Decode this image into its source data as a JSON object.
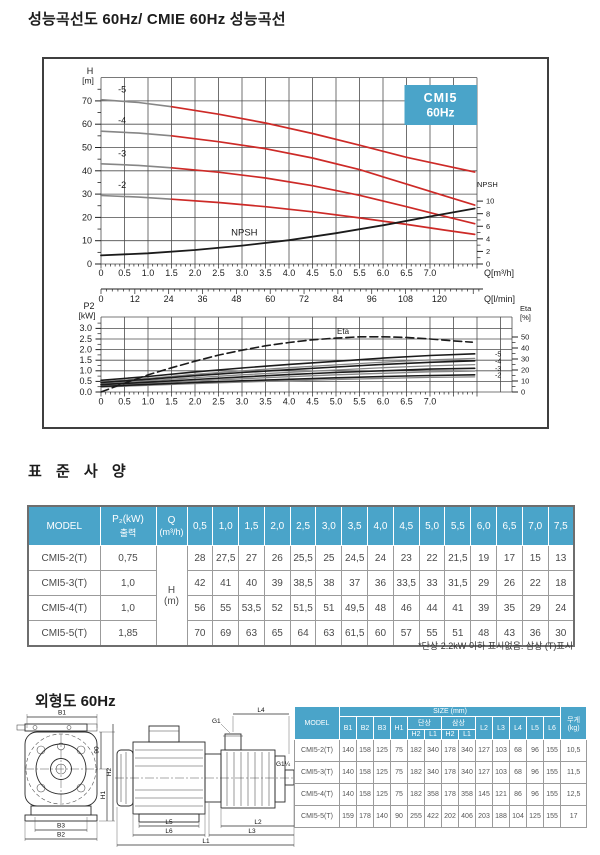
{
  "page": {
    "title": "성능곡선도 60Hz/ CMIE 60Hz 성능곡선",
    "spec_heading": "표 준 사 양",
    "spec_footnote": "*단상 2.2kW 이하 표시없음. 삼상 (T)표시",
    "outline_heading": "외형도 60Hz"
  },
  "colors": {
    "accent_blue": "#4aa4c9",
    "curve_red": "#cd2a27",
    "curve_gray": "#868686",
    "ink": "#1b1b1b",
    "grid": "#4d4d4d"
  },
  "chart_data": {
    "type": "line",
    "badge": {
      "line1": "CMI5",
      "line2": "60Hz"
    },
    "top_chart": {
      "title_axis_y": [
        "H",
        "[m]"
      ],
      "y_ticks": [
        0,
        10,
        20,
        30,
        40,
        50,
        60,
        70
      ],
      "x_ticks": [
        "0",
        "0.5",
        "1.0",
        "1.5",
        "2.0",
        "2.5",
        "3.0",
        "3.5",
        "4.0",
        "4.5",
        "5.0",
        "5.5",
        "6.0",
        "6.5",
        "7.0"
      ],
      "x_unit": "Q[m³/h]",
      "npsh_axis": {
        "title": "NPSH",
        "ticks": [
          10,
          8,
          6,
          4,
          2,
          0
        ]
      },
      "inplot_label": "NPSH",
      "curve_labels": [
        "-5",
        "-4",
        "-3",
        "-2"
      ],
      "curves": [
        {
          "name": "-5",
          "gray": [
            [
              0,
              70.5
            ],
            [
              0.8,
              69.3
            ],
            [
              1.5,
              67.5
            ]
          ],
          "red": [
            [
              1.5,
              67.5
            ],
            [
              2.5,
              64.3
            ],
            [
              3.5,
              60.5
            ],
            [
              4.5,
              56
            ],
            [
              5.5,
              51
            ],
            [
              6.5,
              45.8
            ],
            [
              7.3,
              42.3
            ],
            [
              7.95,
              39.5
            ]
          ]
        },
        {
          "name": "-4",
          "gray": [
            [
              0,
              57
            ],
            [
              0.8,
              56.2
            ],
            [
              1.5,
              55
            ]
          ],
          "red": [
            [
              1.5,
              55
            ],
            [
              2.5,
              52.5
            ],
            [
              3.5,
              49.5
            ],
            [
              4.5,
              45.5
            ],
            [
              5.5,
              40.5
            ],
            [
              6.5,
              34.3
            ],
            [
              7.3,
              29.3
            ],
            [
              7.95,
              25.3
            ]
          ]
        },
        {
          "name": "-3",
          "gray": [
            [
              0,
              43
            ],
            [
              0.8,
              42.3
            ],
            [
              1.5,
              41.3
            ]
          ],
          "red": [
            [
              1.5,
              41.3
            ],
            [
              2.5,
              39.4
            ],
            [
              3.5,
              36.9
            ],
            [
              4.5,
              33.6
            ],
            [
              5.5,
              29.5
            ],
            [
              6.5,
              24.6
            ],
            [
              7.3,
              20.5
            ],
            [
              7.95,
              17.3
            ]
          ]
        },
        {
          "name": "-2",
          "gray": [
            [
              0,
              29.4
            ],
            [
              0.8,
              28.7
            ],
            [
              1.5,
              27.8
            ]
          ],
          "red": [
            [
              1.5,
              27.8
            ],
            [
              2.5,
              26.4
            ],
            [
              3.5,
              24.6
            ],
            [
              4.5,
              22.4
            ],
            [
              5.5,
              19.8
            ],
            [
              6.5,
              17
            ],
            [
              7.3,
              14.6
            ],
            [
              7.95,
              12.7
            ]
          ]
        }
      ],
      "npsh_curve": [
        [
          0,
          3.7
        ],
        [
          1,
          4.6
        ],
        [
          2,
          6
        ],
        [
          3,
          7.9
        ],
        [
          4,
          10.2
        ],
        [
          5,
          13.2
        ],
        [
          6,
          16.6
        ],
        [
          7,
          20.4
        ],
        [
          7.95,
          23.8
        ]
      ]
    },
    "lmin_axis": {
      "ticks": [
        0,
        12,
        24,
        36,
        48,
        60,
        72,
        84,
        96,
        108,
        120
      ],
      "unit": "Q[l/min]"
    },
    "bottom_chart": {
      "title_axis_y": [
        "P2",
        "[kW]"
      ],
      "y_ticks": [
        "3.0",
        "2.5",
        "2.0",
        "1.5",
        "1.0",
        "0.5",
        "0.0"
      ],
      "x_ticks": [
        "0",
        "0.5",
        "1.0",
        "1.5",
        "2.0",
        "2.5",
        "3.0",
        "3.5",
        "4.0",
        "4.5",
        "5.0",
        "5.5",
        "6.0",
        "6.5",
        "7.0"
      ],
      "eta_axis": {
        "title": [
          "Eta",
          "[%]"
        ],
        "ticks": [
          50,
          40,
          30,
          20,
          10,
          0
        ]
      },
      "eta_label": "Eta",
      "curve_labels": [
        "-5",
        "-4",
        "-3",
        "-2"
      ],
      "power_curves": [
        {
          "name": "-5",
          "pts": [
            [
              0,
              0.55
            ],
            [
              1,
              0.73
            ],
            [
              2,
              0.95
            ],
            [
              3,
              1.13
            ],
            [
              4,
              1.3
            ],
            [
              5,
              1.45
            ],
            [
              6,
              1.6
            ],
            [
              7,
              1.72
            ],
            [
              7.95,
              1.8
            ]
          ]
        },
        {
          "name": "-4",
          "pts": [
            [
              0,
              0.45
            ],
            [
              1,
              0.6
            ],
            [
              2,
              0.77
            ],
            [
              3,
              0.92
            ],
            [
              4,
              1.05
            ],
            [
              5,
              1.18
            ],
            [
              6,
              1.3
            ],
            [
              7,
              1.4
            ],
            [
              7.95,
              1.47
            ]
          ]
        },
        {
          "name": "-3",
          "pts": [
            [
              0,
              0.35
            ],
            [
              1,
              0.46
            ],
            [
              2,
              0.59
            ],
            [
              3,
              0.71
            ],
            [
              4,
              0.82
            ],
            [
              5,
              0.92
            ],
            [
              6,
              1.0
            ],
            [
              7,
              1.08
            ],
            [
              7.95,
              1.12
            ]
          ]
        },
        {
          "name": "-2",
          "pts": [
            [
              0,
              0.26
            ],
            [
              1,
              0.36
            ],
            [
              2,
              0.45
            ],
            [
              3,
              0.53
            ],
            [
              4,
              0.6
            ],
            [
              5,
              0.67
            ],
            [
              6,
              0.73
            ],
            [
              7,
              0.78
            ],
            [
              7.95,
              0.81
            ]
          ]
        }
      ],
      "eta_curve": [
        [
          0,
          0
        ],
        [
          0.5,
          8
        ],
        [
          1,
          15.5
        ],
        [
          1.5,
          22
        ],
        [
          2,
          28
        ],
        [
          2.5,
          33.5
        ],
        [
          3,
          38
        ],
        [
          3.5,
          42
        ],
        [
          4,
          45
        ],
        [
          4.5,
          47.5
        ],
        [
          5,
          49
        ],
        [
          5.5,
          50.2
        ],
        [
          6,
          50.2
        ],
        [
          6.5,
          49.6
        ],
        [
          7,
          48.2
        ],
        [
          7.5,
          46.5
        ],
        [
          7.9,
          45.3
        ]
      ]
    }
  },
  "spec_table": {
    "col_model": "MODEL",
    "col_power": [
      "P₂(kW)",
      "출력"
    ],
    "col_q": [
      "Q",
      "(m³/h)"
    ],
    "flow_ticks": [
      "0,5",
      "1,0",
      "1,5",
      "2,0",
      "2,5",
      "3,0",
      "3,5",
      "4,0",
      "4,5",
      "5,0",
      "5,5",
      "6,0",
      "6,5",
      "7,0",
      "7,5"
    ],
    "unit_cell": [
      "H",
      "(m)"
    ],
    "rows": [
      {
        "model": "CMI5-2(T)",
        "power": "0,75",
        "values": [
          "28",
          "27,5",
          "27",
          "26",
          "25,5",
          "25",
          "24,5",
          "24",
          "23",
          "22",
          "21,5",
          "19",
          "17",
          "15",
          "13"
        ]
      },
      {
        "model": "CMI5-3(T)",
        "power": "1,0",
        "values": [
          "42",
          "41",
          "40",
          "39",
          "38,5",
          "38",
          "37",
          "36",
          "33,5",
          "33",
          "31,5",
          "29",
          "26",
          "22",
          "18"
        ]
      },
      {
        "model": "CMI5-4(T)",
        "power": "1,0",
        "values": [
          "56",
          "55",
          "53,5",
          "52",
          "51,5",
          "51",
          "49,5",
          "48",
          "46",
          "44",
          "41",
          "39",
          "35",
          "29",
          "24"
        ]
      },
      {
        "model": "CMI5-5(T)",
        "power": "1,85",
        "values": [
          "70",
          "69",
          "63",
          "65",
          "64",
          "63",
          "61,5",
          "60",
          "57",
          "55",
          "51",
          "48",
          "43",
          "36",
          "30"
        ]
      }
    ]
  },
  "size_table": {
    "col_model": "MODEL",
    "group_size": "SIZE (mm)",
    "col_weight": [
      "무게",
      "(kg)"
    ],
    "cols_left": [
      "B1",
      "B2",
      "B3",
      "H1"
    ],
    "group_single": "단상",
    "group_three": "삼상",
    "sub_cols": [
      "H2",
      "L1"
    ],
    "cols_right": [
      "L2",
      "L3",
      "L4",
      "L5",
      "L6"
    ],
    "rows": [
      {
        "model": "CMI5-2(T)",
        "values": [
          "140",
          "158",
          "125",
          "75",
          "182",
          "340",
          "178",
          "340",
          "127",
          "103",
          "68",
          "96",
          "155",
          "10,5"
        ]
      },
      {
        "model": "CMI5-3(T)",
        "values": [
          "140",
          "158",
          "125",
          "75",
          "182",
          "340",
          "178",
          "340",
          "127",
          "103",
          "68",
          "96",
          "155",
          "11,5"
        ]
      },
      {
        "model": "CMI5-4(T)",
        "values": [
          "140",
          "158",
          "125",
          "75",
          "182",
          "358",
          "178",
          "358",
          "145",
          "121",
          "86",
          "96",
          "155",
          "12,5"
        ]
      },
      {
        "model": "CMI5-5(T)",
        "values": [
          "159",
          "178",
          "140",
          "90",
          "255",
          "422",
          "202",
          "406",
          "203",
          "188",
          "104",
          "125",
          "155",
          "17"
        ]
      }
    ]
  },
  "drawing_labels": {
    "front": {
      "b1": "B1",
      "b2": "B2",
      "b3": "B3",
      "h1": "H1",
      "h2": "H2",
      "d90": "90"
    },
    "side": {
      "g1": "G1",
      "l4": "L4",
      "g114": "G1¼",
      "l5": "L5",
      "l6": "L6",
      "l2": "L2",
      "l3": "L3",
      "l1": "L1"
    }
  }
}
